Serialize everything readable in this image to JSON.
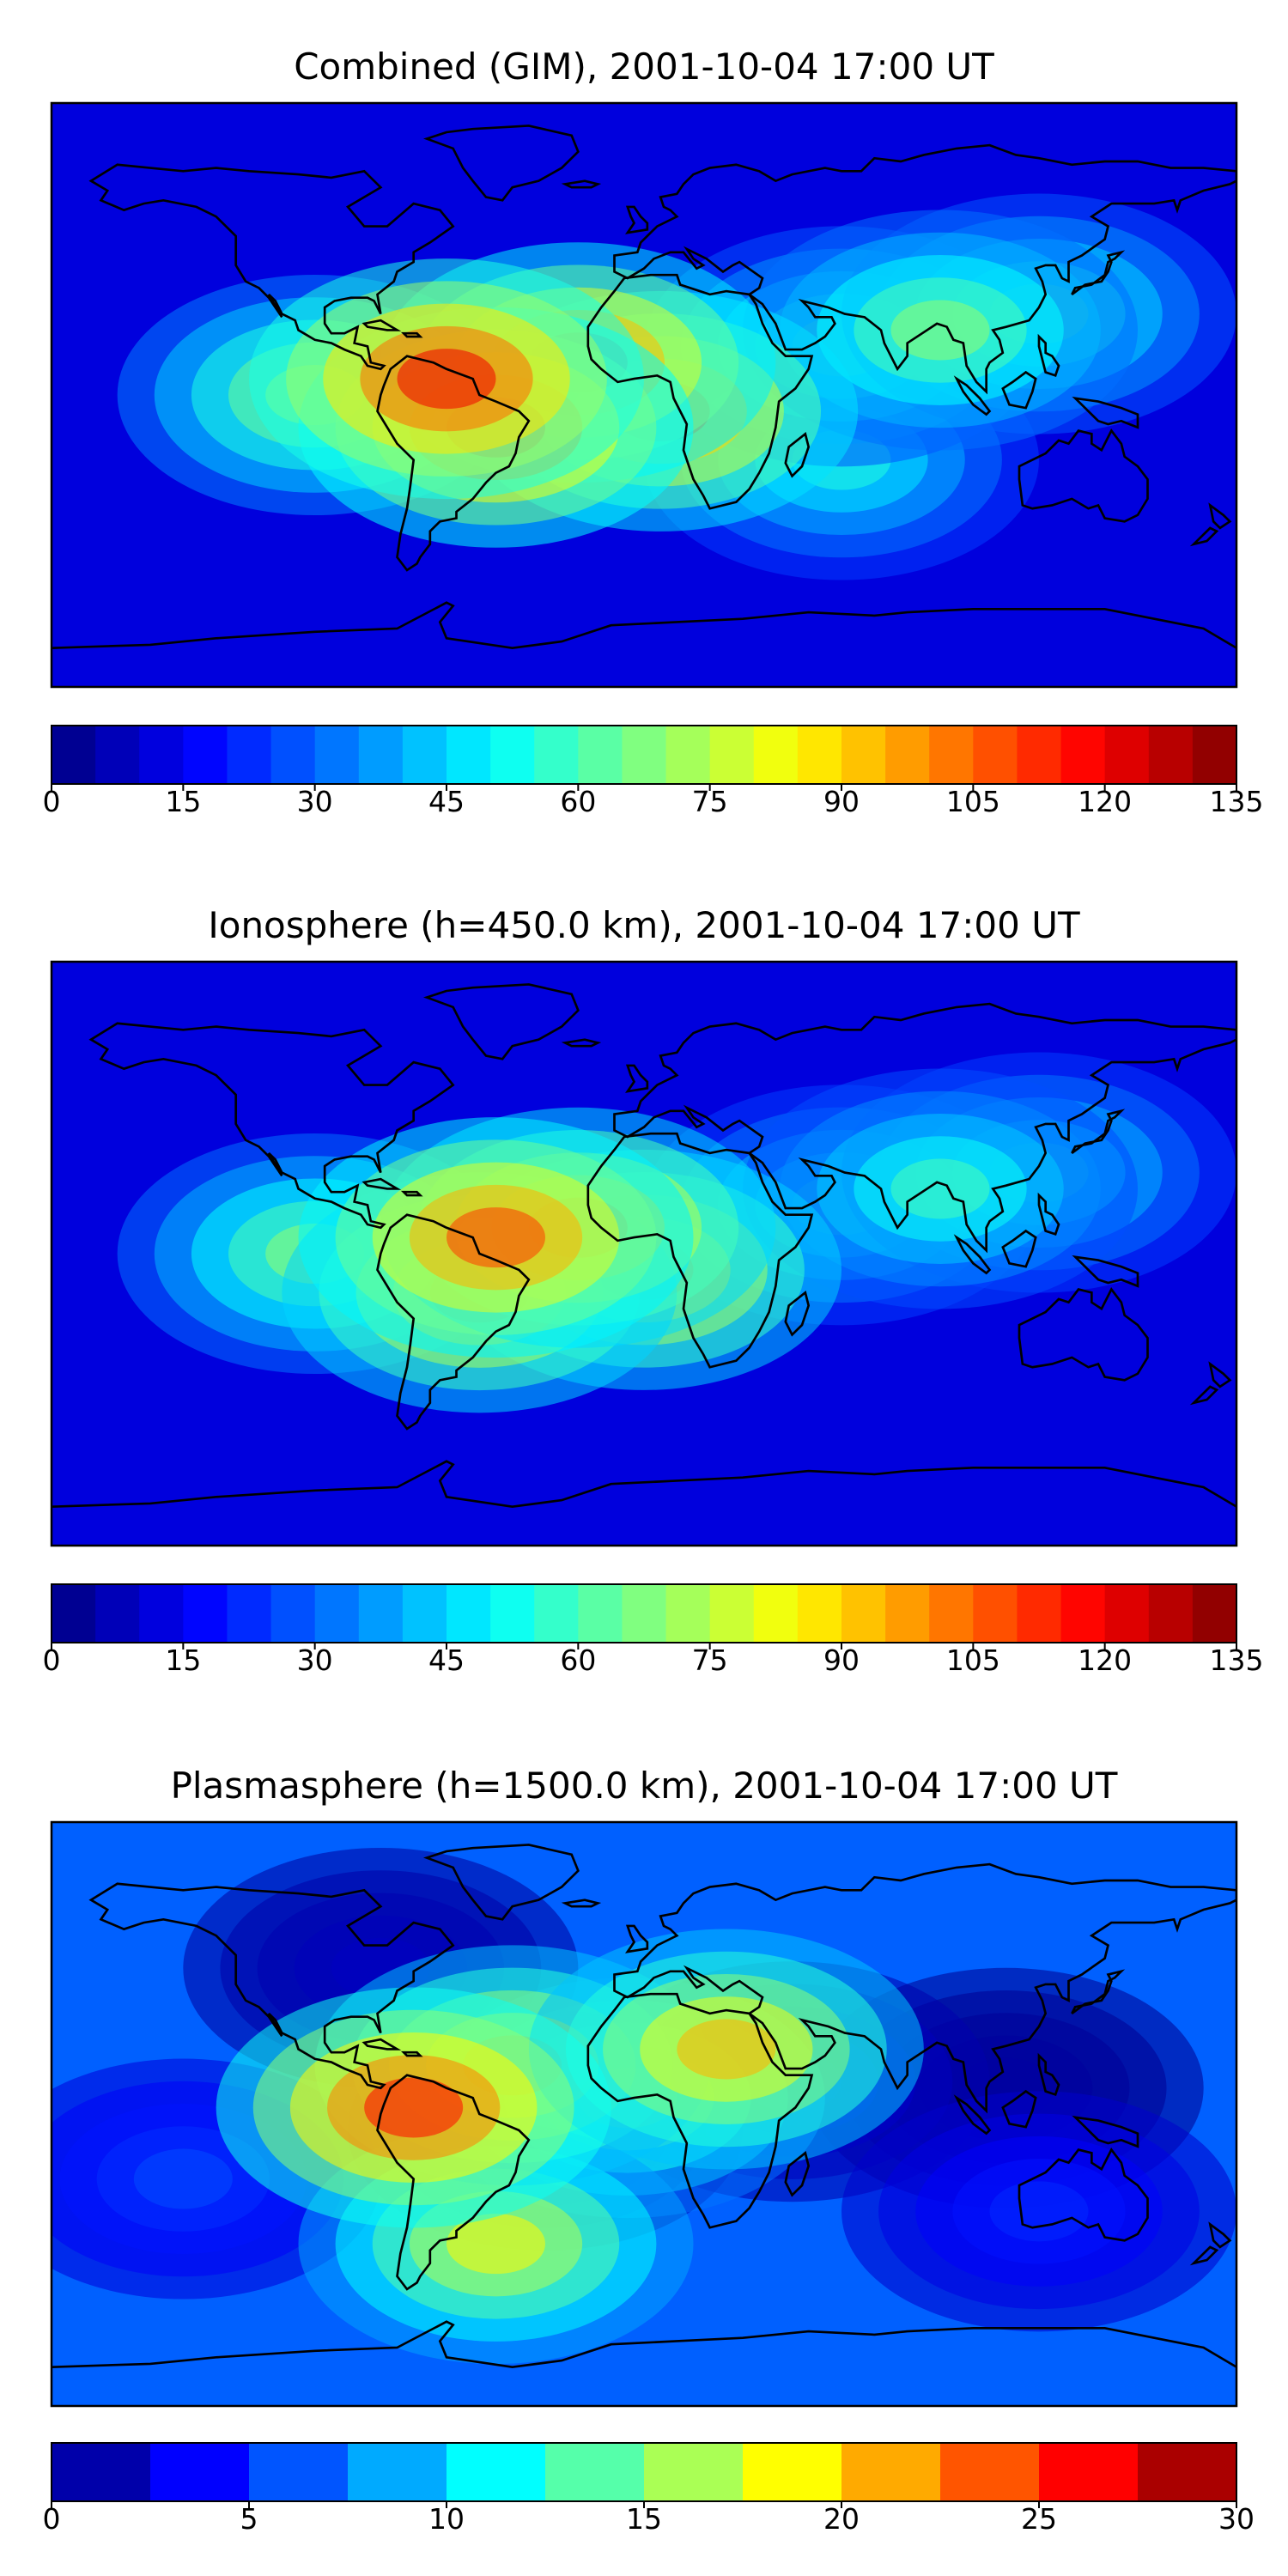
{
  "chart_data": [
    {
      "type": "heatmap",
      "title": "Combined (GIM), 2001-10-04 17:00 UT",
      "colorbar": {
        "ticks": [
          "0",
          "15",
          "30",
          "45",
          "60",
          "75",
          "90",
          "105",
          "120",
          "135"
        ],
        "min": 0,
        "max": 135,
        "levels": 27
      },
      "blobs": [
        {
          "lon": -60,
          "lat": 5,
          "value": 120
        },
        {
          "lon": -45,
          "lat": -10,
          "value": 112
        },
        {
          "lon": -20,
          "lat": 10,
          "value": 108
        },
        {
          "lon": 5,
          "lat": -5,
          "value": 104
        },
        {
          "lon": 60,
          "lat": 15,
          "value": 62
        },
        {
          "lon": 90,
          "lat": 20,
          "value": 70
        },
        {
          "lon": 120,
          "lat": 25,
          "value": 62
        },
        {
          "lon": 60,
          "lat": -20,
          "value": 55
        },
        {
          "lon": -100,
          "lat": 0,
          "value": 75
        }
      ]
    },
    {
      "type": "heatmap",
      "title": "Ionosphere  (h=450.0 km), 2001-10-04 17:00 UT",
      "colorbar": {
        "ticks": [
          "0",
          "15",
          "30",
          "45",
          "60",
          "75",
          "90",
          "105",
          "120",
          "135"
        ],
        "min": 0,
        "max": 135,
        "levels": 27
      },
      "blobs": [
        {
          "lon": -45,
          "lat": 5,
          "value": 110
        },
        {
          "lon": -50,
          "lat": -12,
          "value": 100
        },
        {
          "lon": -20,
          "lat": 8,
          "value": 102
        },
        {
          "lon": 0,
          "lat": -5,
          "value": 98
        },
        {
          "lon": 60,
          "lat": 15,
          "value": 55
        },
        {
          "lon": 90,
          "lat": 20,
          "value": 60
        },
        {
          "lon": 120,
          "lat": 25,
          "value": 55
        },
        {
          "lon": -100,
          "lat": 0,
          "value": 70
        }
      ]
    },
    {
      "type": "heatmap",
      "title": "Plasmasphere (h=1500.0 km), 2001-10-04 17:00 UT",
      "colorbar": {
        "ticks": [
          "0",
          "5",
          "10",
          "15",
          "20",
          "25",
          "30"
        ],
        "min": 0,
        "max": 30,
        "levels": 12
      },
      "blobs": [
        {
          "lon": -70,
          "lat": 2,
          "value": 26
        },
        {
          "lon": -40,
          "lat": 15,
          "value": 21
        },
        {
          "lon": 25,
          "lat": 20,
          "value": 21
        },
        {
          "lon": -5,
          "lat": 5,
          "value": 16
        },
        {
          "lon": -45,
          "lat": -40,
          "value": 19
        },
        {
          "lon": -30,
          "lat": -5,
          "value": 3
        },
        {
          "lon": 45,
          "lat": 10,
          "value": 3
        },
        {
          "lon": 110,
          "lat": 8,
          "value": 1
        },
        {
          "lon": -80,
          "lat": 45,
          "value": 2
        },
        {
          "lon": 120,
          "lat": -30,
          "value": 5
        },
        {
          "lon": -140,
          "lat": -20,
          "value": 6
        }
      ]
    }
  ]
}
